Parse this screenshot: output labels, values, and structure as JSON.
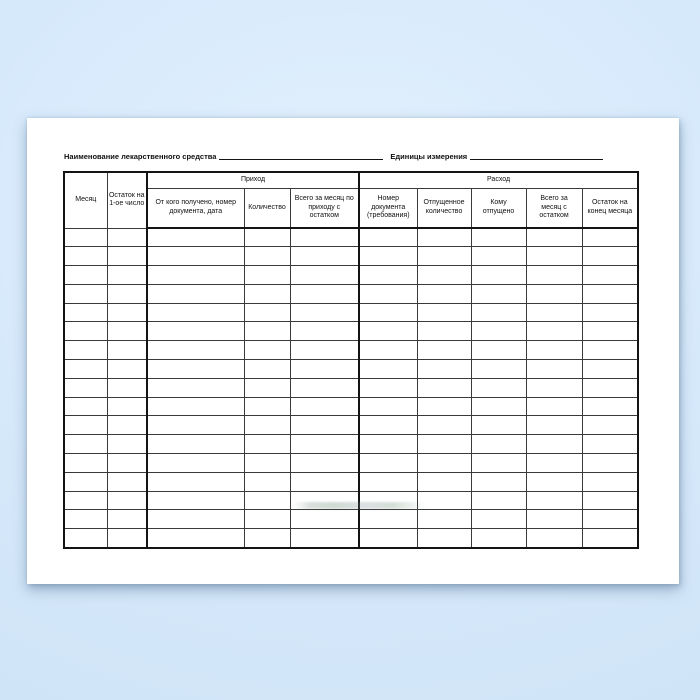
{
  "appearance": {
    "background_top": "#e2f0fd",
    "background_bottom": "#cde2f6",
    "paper": "#ffffff",
    "border": "#3a3a3a",
    "border_strong": "#141414",
    "text": "#111111"
  },
  "document": {
    "name_field_label": "Наименование лекарственного средства",
    "name_field_value": "",
    "units_field_label": "Единицы измерения",
    "units_field_value": "",
    "table": {
      "group_headers": {
        "prihod": "Приход",
        "rashod": "Расход"
      },
      "columns": [
        {
          "label": "Месяц"
        },
        {
          "label": "Остаток на\n1-ое число"
        },
        {
          "label": "От кого получено, номер\nдокумента, дата"
        },
        {
          "label": "Количество"
        },
        {
          "label": "Всего за месяц по\nприходу с\nостатком"
        },
        {
          "label": "Номер\nдокумента\n(требования)"
        },
        {
          "label": "Отпущенное\nколичество"
        },
        {
          "label": "Кому\nотпущено"
        },
        {
          "label": "Всего за\nмесяц с\nостатком"
        },
        {
          "label": "Остаток на\nконец месяца"
        }
      ],
      "blank_row_count": 17
    }
  }
}
